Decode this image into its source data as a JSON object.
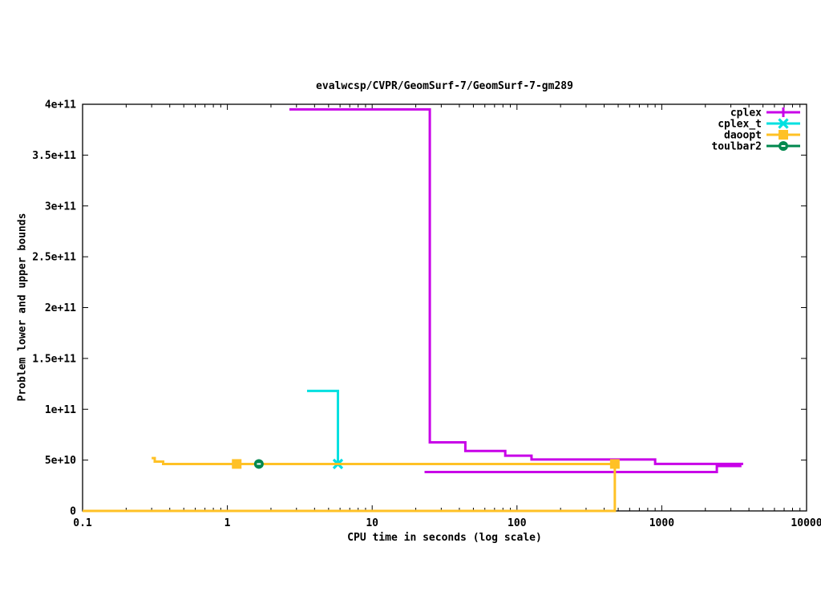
{
  "chart_data": {
    "type": "line",
    "title": "evalwcsp/CVPR/GeomSurf-7/GeomSurf-7-gm289",
    "xlabel": "CPU time in seconds (log scale)",
    "ylabel": "Problem lower and upper bounds",
    "x_scale": "log",
    "grid": false,
    "legend_position": "top-right",
    "xlim": [
      0.1,
      10000
    ],
    "ylim": [
      0,
      400000000000.0
    ],
    "x_ticks": {
      "values": [
        0.1,
        1,
        10,
        100,
        1000,
        10000
      ],
      "labels": [
        "0.1",
        "1",
        "10",
        "100",
        "1000",
        "10000"
      ]
    },
    "y_ticks": {
      "values": [
        0,
        50000000000.0,
        100000000000.0,
        150000000000.0,
        200000000000.0,
        250000000000.0,
        300000000000.0,
        350000000000.0,
        400000000000.0
      ],
      "labels": [
        "0",
        "5e+10",
        "1e+11",
        "1.5e+11",
        "2e+11",
        "2.5e+11",
        "3e+11",
        "3.5e+11",
        "4e+11"
      ]
    },
    "series": [
      {
        "name": "cplex",
        "color": "#c800e8",
        "marker": "plus",
        "lines": [
          [
            [
              2.68,
              395000000000.0
            ],
            [
              25,
              395000000000.0
            ],
            [
              25,
              67500000000.0
            ],
            [
              44,
              67500000000.0
            ],
            [
              44,
              59000000000.0
            ],
            [
              83,
              59000000000.0
            ],
            [
              83,
              54300000000.0
            ],
            [
              126,
              54300000000.0
            ],
            [
              126,
              50600000000.0
            ],
            [
              900,
              50600000000.0
            ],
            [
              900,
              46300000000.0
            ],
            [
              3650,
              46300000000.0
            ]
          ],
          [
            [
              23,
              38300000000.0
            ],
            [
              2400,
              38300000000.0
            ],
            [
              2400,
              44200000000.0
            ],
            [
              3550,
              44200000000.0
            ]
          ]
        ],
        "markers": []
      },
      {
        "name": "cplex_t",
        "color": "#00e0e0",
        "marker": "cross",
        "lines": [
          [
            [
              3.55,
              118000000000.0
            ],
            [
              5.8,
              118000000000.0
            ],
            [
              5.8,
              46200000000.0
            ]
          ]
        ],
        "markers": [
          [
            5.8,
            46200000000.0
          ]
        ]
      },
      {
        "name": "daoopt",
        "color": "#ffc125",
        "marker": "square",
        "lines": [
          [
            [
              0.3,
              52000000000.0
            ],
            [
              0.315,
              52000000000.0
            ],
            [
              0.315,
              48500000000.0
            ],
            [
              0.36,
              48500000000.0
            ],
            [
              0.36,
              46200000000.0
            ],
            [
              474,
              46200000000.0
            ]
          ],
          [
            [
              0.1,
              0
            ],
            [
              474,
              0
            ],
            [
              474,
              46200000000.0
            ]
          ]
        ],
        "markers": [
          [
            1.16,
            46200000000.0
          ],
          [
            474,
            46200000000.0
          ]
        ]
      },
      {
        "name": "toulbar2",
        "color": "#00884e",
        "marker": "circle-dash",
        "lines": [],
        "markers": [
          [
            1.65,
            46200000000.0
          ]
        ]
      }
    ]
  }
}
